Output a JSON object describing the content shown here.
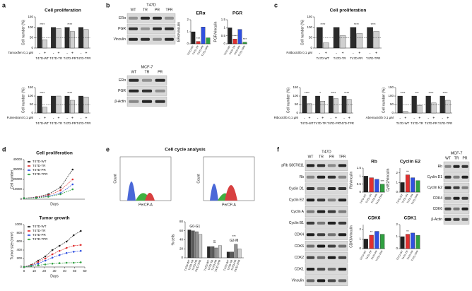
{
  "panel_labels": [
    "a",
    "b",
    "c",
    "d",
    "e",
    "f"
  ],
  "chart_data": [
    {
      "type": "bar",
      "title": "Cell proliferation",
      "ylabel": "Cell number (%)",
      "treatment": "Tamoxifen 0,1 µM",
      "categories": [
        "T47D-WT",
        "T47D-TR",
        "T47D-PR",
        "T47D-TPR"
      ],
      "series": [
        {
          "name": "-",
          "color": "#2b2b2b",
          "values": [
            100,
            100,
            100,
            100
          ]
        },
        {
          "name": "+",
          "color": "#d0d0d0",
          "values": [
            40,
            95,
            80,
            90
          ]
        }
      ],
      "ylim": [
        0,
        150
      ],
      "yticks": [
        0,
        50,
        100,
        150
      ],
      "hline": 50,
      "annotations": [
        "****",
        null,
        "****",
        null
      ]
    },
    {
      "type": "bar",
      "ylabel": "Cell number (%)",
      "treatment": "Fulvestrant 0,1 µM",
      "categories": [
        "T47D-WT",
        "T47D-TR",
        "T47D-PR",
        "T47D-TPR"
      ],
      "series": [
        {
          "name": "-",
          "color": "#2b2b2b",
          "values": [
            100,
            100,
            100,
            100
          ]
        },
        {
          "name": "+",
          "color": "#d0d0d0",
          "values": [
            35,
            100,
            75,
            95
          ]
        }
      ],
      "ylim": [
        0,
        150
      ],
      "yticks": [
        0,
        50,
        100,
        150
      ],
      "hline": 50,
      "annotations": [
        "****",
        null,
        "****",
        null
      ]
    },
    {
      "type": "bar",
      "title": "ERα",
      "ylabel": "ERα/vinculin",
      "categories": [
        "T47D-WT",
        "T47D-TR",
        "T47D-PR",
        "T47D-TPR"
      ],
      "values": [
        1.0,
        0.2,
        1.4,
        0.5
      ],
      "colors": [
        "#222222",
        "#e03030",
        "#3050e0",
        "#30a040"
      ],
      "ylim": [
        0,
        2
      ],
      "yticks": [
        0,
        1,
        2
      ],
      "annotations": [
        null,
        "***",
        null,
        null
      ]
    },
    {
      "type": "bar",
      "title": "PGR",
      "ylabel": "PGR/vinculin",
      "categories": [
        "T47D-WT",
        "T47D-TR",
        "T47D-PR",
        "T47D-TPR"
      ],
      "values": [
        1.0,
        0.3,
        0.9,
        0.1
      ],
      "colors": [
        "#222222",
        "#e03030",
        "#3050e0",
        "#30a040"
      ],
      "ylim": [
        0,
        1.5
      ],
      "yticks": [
        0,
        0.5,
        1,
        1.5
      ],
      "annotations": [
        null,
        "****",
        null,
        "***"
      ]
    },
    {
      "type": "bar",
      "title": "Cell proliferation",
      "ylabel": "Cell number (%)",
      "treatment": "Palbociclib 0,1 µM",
      "categories": [
        "T47D-WT",
        "T47D-TR",
        "T47D-PR",
        "T47D-TPR"
      ],
      "series": [
        {
          "name": "-",
          "color": "#2b2b2b",
          "values": [
            100,
            100,
            100,
            100
          ]
        },
        {
          "name": "+",
          "color": "#d0d0d0",
          "values": [
            25,
            60,
            70,
            80
          ]
        }
      ],
      "ylim": [
        0,
        150
      ],
      "yticks": [
        0,
        50,
        100,
        150
      ],
      "hline": 50,
      "annotations": [
        "****",
        null,
        "****",
        "****"
      ]
    },
    {
      "type": "bar",
      "ylabel": "Cell number (%)",
      "treatment": "Ribociclib 0,1 µM",
      "categories": [
        "T47D-WT",
        "T47D-TR",
        "T47D-PR",
        "T47D-TPR"
      ],
      "series": [
        {
          "name": "-",
          "color": "#2b2b2b",
          "values": [
            100,
            100,
            100,
            100
          ]
        },
        {
          "name": "+",
          "color": "#d0d0d0",
          "values": [
            55,
            70,
            85,
            80
          ]
        }
      ],
      "ylim": [
        0,
        150
      ],
      "yticks": [
        0,
        50,
        100,
        150
      ],
      "hline": 50,
      "annotations": [
        "****",
        "*",
        "****",
        "****"
      ]
    },
    {
      "type": "bar",
      "ylabel": "Cell number (%)",
      "treatment": "Abemaciclib 0,1 µM",
      "categories": [
        "T47D-WT",
        "T47D-TR",
        "T47D-PR",
        "T47D-TPR"
      ],
      "series": [
        {
          "name": "-",
          "color": "#2b2b2b",
          "values": [
            100,
            100,
            100,
            100
          ]
        },
        {
          "name": "+",
          "color": "#d0d0d0",
          "values": [
            10,
            45,
            60,
            75
          ]
        }
      ],
      "ylim": [
        0,
        150
      ],
      "yticks": [
        0,
        50,
        100,
        150
      ],
      "hline": 50,
      "annotations": [
        "****",
        "***",
        "****",
        "****"
      ]
    },
    {
      "type": "line",
      "title": "Cell proliferation",
      "ylabel": "Cell number",
      "xlabel": "Days",
      "x": [
        0,
        2,
        4,
        6,
        8
      ],
      "xlim": [
        0,
        10
      ],
      "series": [
        {
          "name": "T47D-WT",
          "color": "#222222",
          "values": [
            1000,
            2000,
            5000,
            12000,
            30000
          ]
        },
        {
          "name": "T47D-TR",
          "color": "#e03030",
          "values": [
            1000,
            1800,
            4000,
            9000,
            20000
          ]
        },
        {
          "name": "T47D-PR",
          "color": "#3050e0",
          "values": [
            1000,
            1500,
            3000,
            6000,
            15000
          ]
        },
        {
          "name": "T47D-TPR",
          "color": "#30a040",
          "values": [
            1000,
            1300,
            2500,
            5000,
            10000
          ]
        }
      ],
      "ylim": [
        0,
        40000
      ],
      "yticks": [
        0,
        10000,
        20000,
        30000,
        40000
      ],
      "legend": "top-left"
    },
    {
      "type": "line",
      "title": "Tumor growth",
      "ylabel": "Tumor size (mm³)",
      "xlabel": "Days",
      "x": [
        0,
        7,
        14,
        21,
        28,
        35,
        42,
        49,
        56
      ],
      "xlim": [
        0,
        60
      ],
      "xticks": [
        0,
        10,
        20,
        30,
        40,
        50,
        60
      ],
      "series": [
        {
          "name": "T47D-WT",
          "color": "#222222",
          "values": [
            0,
            50,
            150,
            250,
            400,
            500,
            600,
            750,
            850
          ]
        },
        {
          "name": "T47D-TR",
          "color": "#e03030",
          "values": [
            0,
            40,
            120,
            200,
            300,
            380,
            450,
            500,
            520
          ]
        },
        {
          "name": "T47D-PR",
          "color": "#3050e0",
          "values": [
            0,
            30,
            80,
            150,
            220,
            280,
            330,
            360,
            380
          ]
        },
        {
          "name": "T47D-TPR",
          "color": "#30a040",
          "values": [
            0,
            20,
            40,
            60,
            80,
            90,
            100,
            100,
            110
          ]
        }
      ],
      "ylim": [
        0,
        1000
      ],
      "yticks": [
        0,
        200,
        400,
        600,
        800,
        1000
      ],
      "legend": "top-left"
    },
    {
      "type": "bar",
      "ylabel": "% cells",
      "categories": [
        "G0-G1",
        "S",
        "G2-M"
      ],
      "series": [
        {
          "name": "T47D-WT",
          "color": "#2b2b2b",
          "values": [
            62,
            25,
            13
          ]
        },
        {
          "name": "T47D-TR",
          "color": "#5a5a5a",
          "values": [
            60,
            25,
            13
          ]
        },
        {
          "name": "T47D-PR",
          "color": "#909090",
          "values": [
            58,
            22,
            30
          ]
        },
        {
          "name": "T47D-TPR",
          "color": "#cfcfcf",
          "values": [
            52,
            27,
            20
          ]
        }
      ],
      "ylim": [
        0,
        80
      ],
      "yticks": [
        0,
        20,
        40,
        60,
        80
      ],
      "annotations": [
        null,
        null,
        "***"
      ]
    },
    {
      "type": "bar",
      "title": "Rb",
      "ylabel": "Rb/vinculin",
      "categories": [
        "T47D-WT",
        "T47D-TR",
        "T47D-PR",
        "T47D-TPR"
      ],
      "values": [
        1.0,
        0.9,
        0.8,
        0.5
      ],
      "colors": [
        "#222222",
        "#e03030",
        "#3050e0",
        "#30a040"
      ],
      "ylim": [
        0,
        1.5
      ],
      "yticks": [
        0,
        0.5,
        1,
        1.5
      ],
      "annotations": [
        null,
        null,
        null,
        "***"
      ]
    },
    {
      "type": "bar",
      "title": "Cyclin E2",
      "ylabel": "CycE2/vinculin",
      "categories": [
        "T47D-WT",
        "T47D-TR",
        "T47D-PR",
        "T47D-TPR"
      ],
      "values": [
        1.0,
        1.8,
        1.5,
        1.2
      ],
      "colors": [
        "#222222",
        "#e03030",
        "#3050e0",
        "#30a040"
      ],
      "ylim": [
        0,
        2.5
      ],
      "yticks": [
        0,
        1,
        2
      ],
      "annotations": [
        null,
        "**",
        null,
        null
      ]
    },
    {
      "type": "bar",
      "title": "CDK6",
      "ylabel": "CDK6/vinculin",
      "categories": [
        "T47D-WT",
        "T47D-TR",
        "T47D-PR",
        "T47D-TPR"
      ],
      "values": [
        1.0,
        1.4,
        1.8,
        1.5
      ],
      "colors": [
        "#222222",
        "#e03030",
        "#3050e0",
        "#30a040"
      ],
      "ylim": [
        0,
        2.5
      ],
      "yticks": [
        0,
        1,
        2
      ],
      "annotations": [
        null,
        "**",
        null,
        null
      ]
    },
    {
      "type": "bar",
      "title": "CDK1",
      "categories": [
        "T47D-WT",
        "T47D-TR",
        "T47D-PR",
        "T47D-TPR"
      ],
      "values": [
        1.0,
        1.2,
        1.3,
        1.1
      ],
      "colors": [
        "#222222",
        "#e03030",
        "#3050e0",
        "#30a040"
      ],
      "ylim": [
        0,
        2
      ],
      "yticks": [
        0,
        1,
        2
      ],
      "annotations": [
        null,
        "**",
        null,
        null
      ]
    }
  ],
  "blots": [
    {
      "title": "T47D",
      "lanes": [
        "WT",
        "TR",
        "PR",
        "TPR"
      ],
      "rows": [
        "ERα",
        "PGR",
        "Vinculin"
      ]
    },
    {
      "title": "MCF-7",
      "lanes": [
        "WT",
        "TR",
        "PR"
      ],
      "rows": [
        "ERα",
        "PGR",
        "β-Actin"
      ]
    },
    {
      "title": "T47D",
      "lanes": [
        "WT",
        "TR",
        "PR",
        "TPR"
      ],
      "rows": [
        "pRb S807/811",
        "Rb",
        "Cyclin D1",
        "Cyclin E2",
        "Cyclin A",
        "Cyclin B1",
        "CDK4",
        "CDK6",
        "CDK2",
        "CDK1",
        "Vinculin"
      ]
    },
    {
      "title": "MCF-7",
      "lanes": [
        "WT",
        "TR",
        "PR"
      ],
      "rows": [
        "Rb",
        "Cyclin D1",
        "Cyclin E2",
        "CDK4",
        "CDK6",
        "β-Actin"
      ]
    }
  ],
  "cell_cycle": {
    "title": "Cell cycle analysis",
    "histograms": [
      {
        "ylabel": "Count",
        "xlabel": "PerCP-A"
      },
      {
        "ylabel": "Count",
        "xlabel": "PerCP-A"
      }
    ]
  }
}
